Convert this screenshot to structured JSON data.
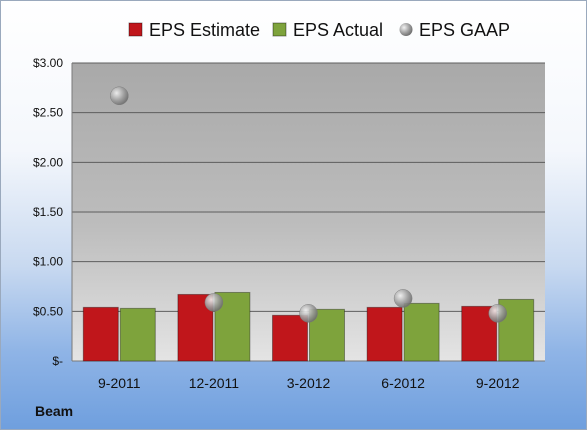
{
  "chart_data": {
    "type": "bar",
    "title": "",
    "company": "Beam",
    "categories": [
      "9-2011",
      "12-2011",
      "3-2012",
      "6-2012",
      "9-2012"
    ],
    "series": [
      {
        "name": "EPS Estimate",
        "kind": "bar",
        "color": "#c0161b",
        "values": [
          0.54,
          0.67,
          0.46,
          0.54,
          0.55
        ]
      },
      {
        "name": "EPS Actual",
        "kind": "bar",
        "color": "#7ea33c",
        "values": [
          0.53,
          0.69,
          0.52,
          0.58,
          0.62
        ]
      },
      {
        "name": "EPS GAAP",
        "kind": "marker",
        "color": "#9a9a9a",
        "values": [
          2.67,
          0.59,
          0.48,
          0.63,
          0.48
        ]
      }
    ],
    "ylim": [
      0,
      3.0
    ],
    "yticks": [
      0,
      0.5,
      1.0,
      1.5,
      2.0,
      2.5,
      3.0
    ],
    "ytick_labels": [
      "$-",
      "$0.50",
      "$1.00",
      "$1.50",
      "$2.00",
      "$2.50",
      "$3.00"
    ],
    "grid": true,
    "legend_position": "top"
  }
}
